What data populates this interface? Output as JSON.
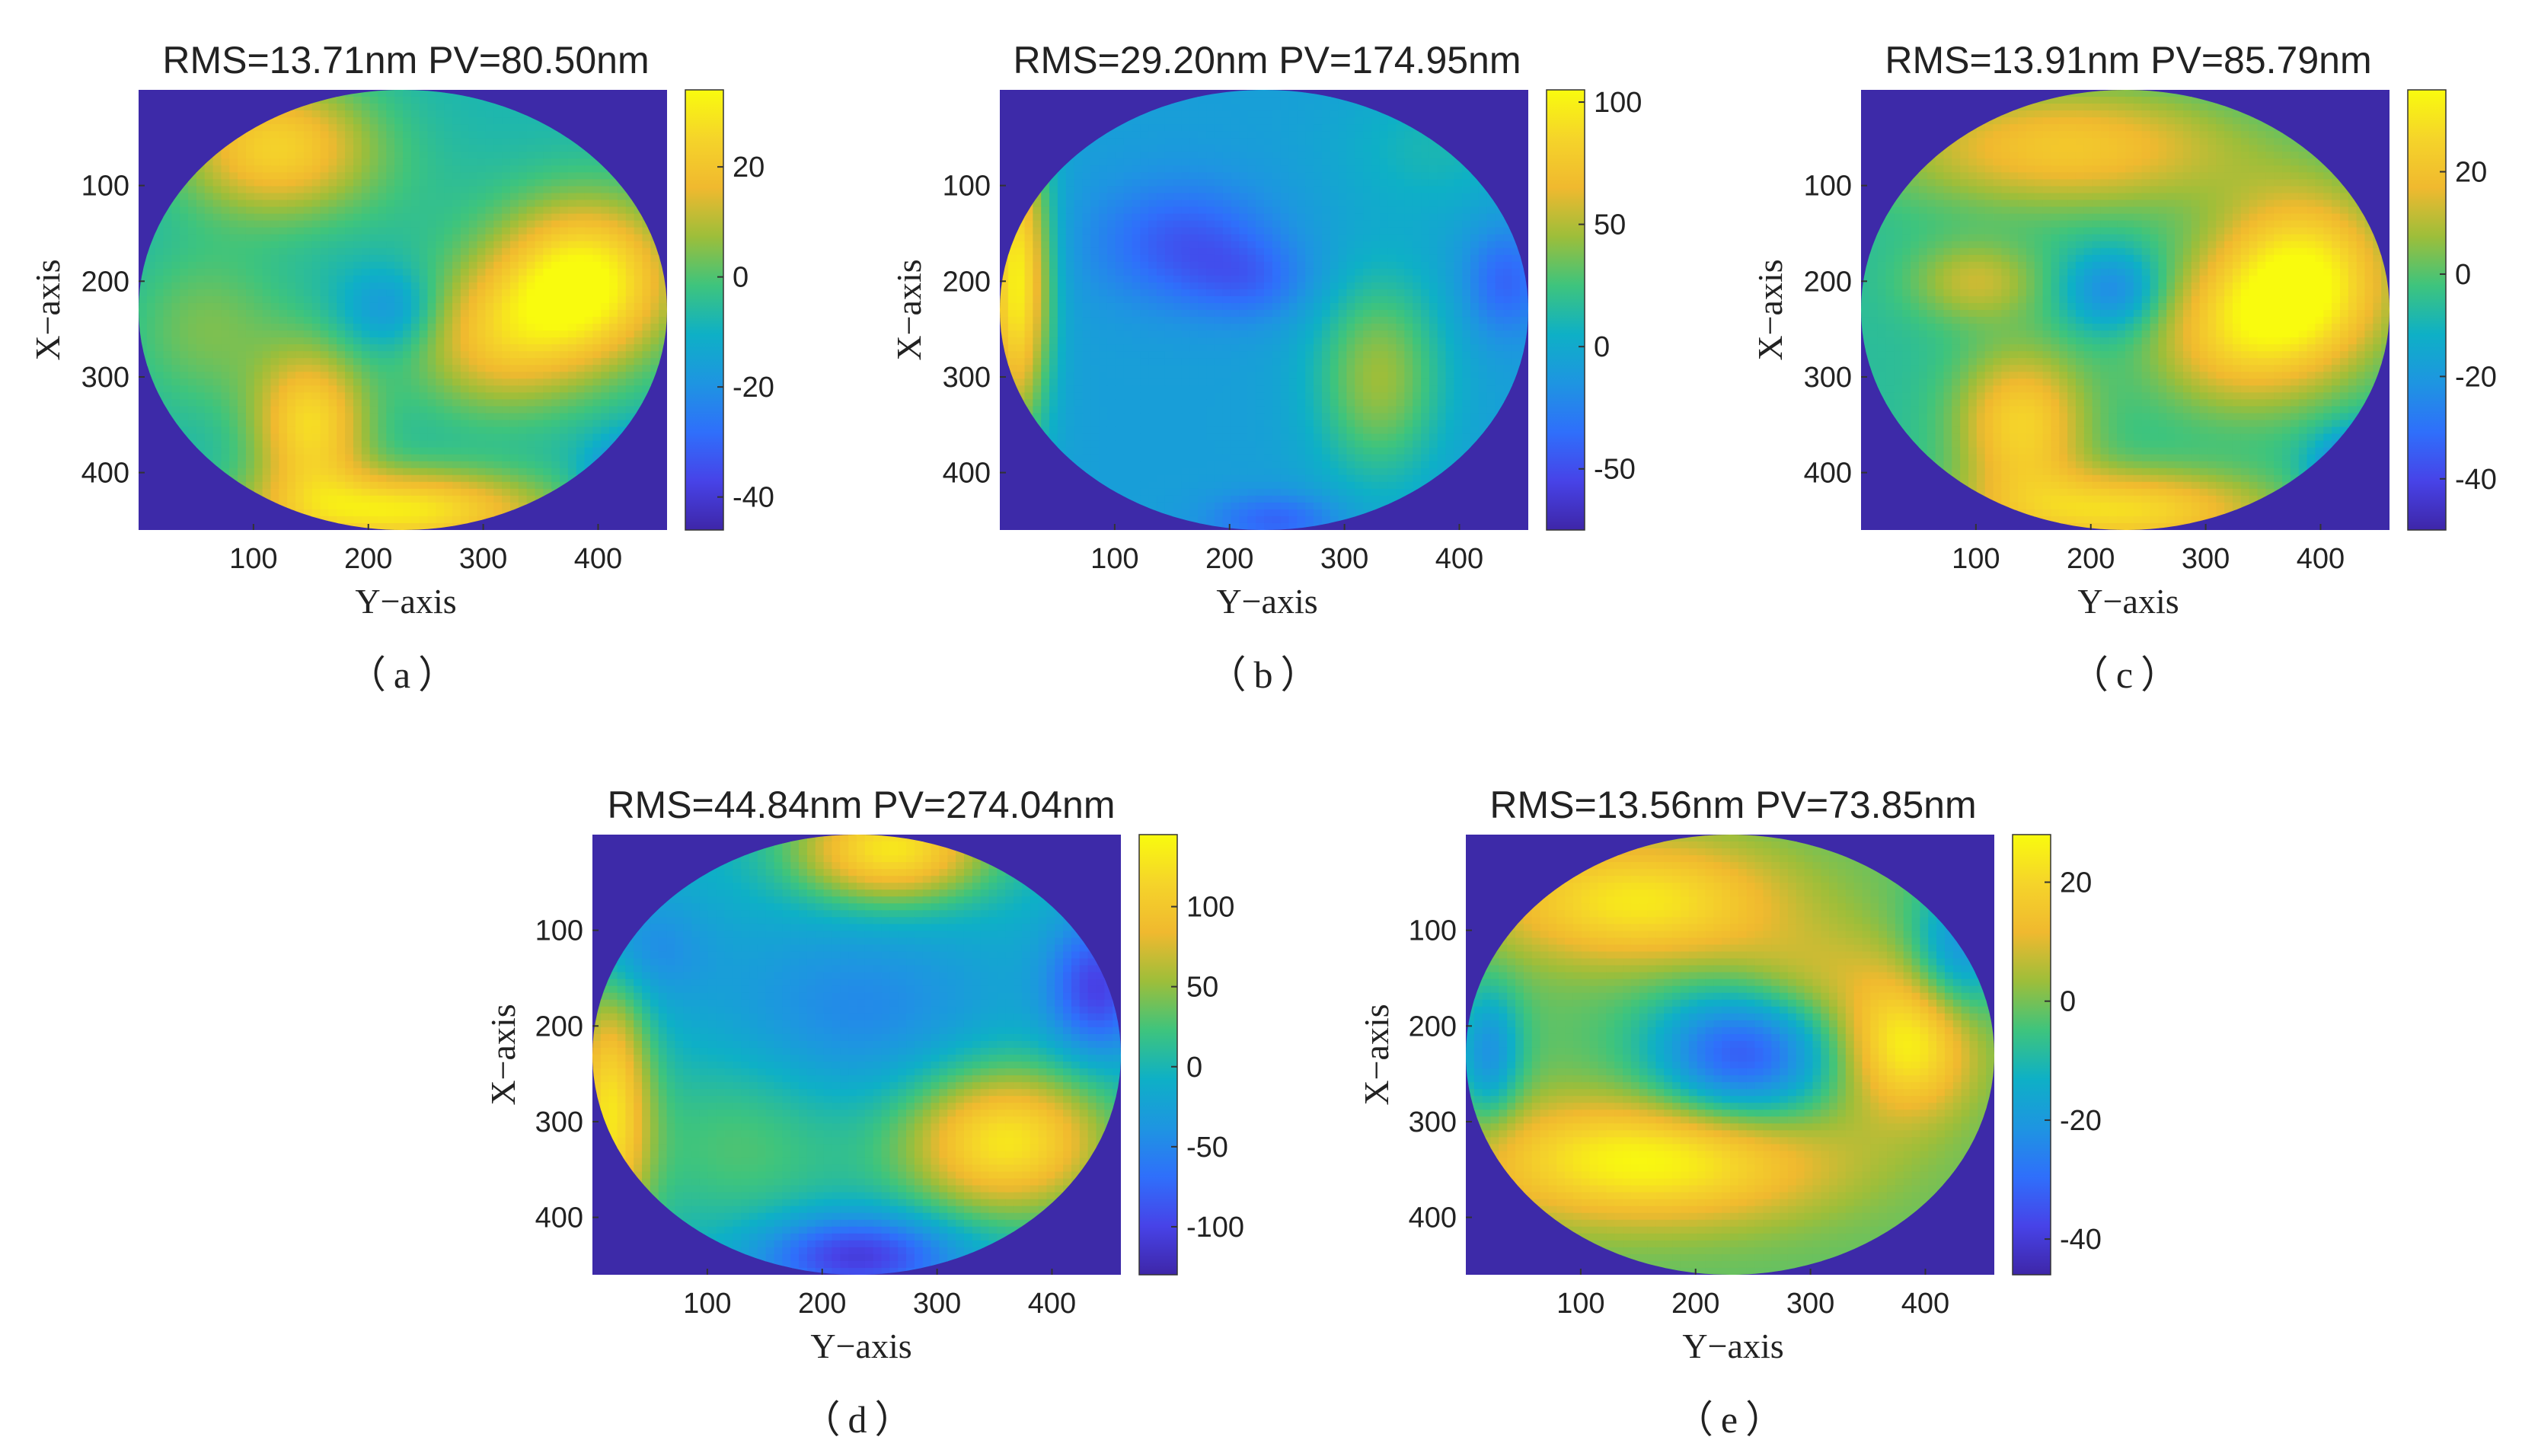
{
  "colors": {
    "background_fill": "#3d2aa8",
    "colormap": [
      "#3e26a8",
      "#4743e8",
      "#2f6ffb",
      "#1e95e1",
      "#0eb0c6",
      "#3ec47d",
      "#9dbe3a",
      "#f0b92f",
      "#f5d42a",
      "#f9fb0e"
    ]
  },
  "chart_data": [
    {
      "panel": "a",
      "type": "heatmap",
      "subplot_label": "（a）",
      "title": "RMS=13.71nm PV=80.50nm",
      "xlabel": "Y−axis",
      "ylabel": "X−axis",
      "xlim": [
        0,
        460
      ],
      "ylim": [
        0,
        460
      ],
      "xticks": [
        100,
        200,
        300,
        400
      ],
      "yticks": [
        100,
        200,
        300,
        400
      ],
      "colorbar": {
        "range": [
          -46,
          34
        ],
        "ticks": [
          20,
          0,
          -20,
          -40
        ]
      },
      "base_value": -8,
      "blobs": [
        {
          "x": 390,
          "y": 200,
          "value": 34,
          "sx": 55,
          "sy": 60
        },
        {
          "x": 310,
          "y": 260,
          "value": 16,
          "sx": 55,
          "sy": 55
        },
        {
          "x": 120,
          "y": 60,
          "value": 24,
          "sx": 60,
          "sy": 50
        },
        {
          "x": 150,
          "y": 350,
          "value": 26,
          "sx": 35,
          "sy": 55
        },
        {
          "x": 230,
          "y": 440,
          "value": 30,
          "sx": 90,
          "sy": 30
        },
        {
          "x": 220,
          "y": 230,
          "value": -22,
          "sx": 30,
          "sy": 30
        },
        {
          "x": 440,
          "y": 410,
          "value": -40,
          "sx": 30,
          "sy": 30
        },
        {
          "x": 240,
          "y": 110,
          "value": -6,
          "sx": 60,
          "sy": 50
        },
        {
          "x": 60,
          "y": 250,
          "value": 4,
          "sx": 50,
          "sy": 60
        }
      ]
    },
    {
      "panel": "b",
      "type": "heatmap",
      "subplot_label": "（b）",
      "title": "RMS=29.20nm PV=174.95nm",
      "xlabel": "Y−axis",
      "ylabel": "X−axis",
      "xlim": [
        0,
        460
      ],
      "ylim": [
        0,
        460
      ],
      "xticks": [
        100,
        200,
        300,
        400
      ],
      "yticks": [
        100,
        200,
        300,
        400
      ],
      "colorbar": {
        "range": [
          -75,
          105
        ],
        "ticks": [
          100,
          50,
          0,
          -50
        ]
      },
      "base_value": -8,
      "blobs": [
        {
          "x": 15,
          "y": 200,
          "value": 100,
          "sx": 20,
          "sy": 110
        },
        {
          "x": 330,
          "y": 300,
          "value": 45,
          "sx": 40,
          "sy": 75
        },
        {
          "x": 160,
          "y": 160,
          "value": -45,
          "sx": 55,
          "sy": 45
        },
        {
          "x": 220,
          "y": 200,
          "value": -30,
          "sx": 40,
          "sy": 30
        },
        {
          "x": 440,
          "y": 200,
          "value": -40,
          "sx": 25,
          "sy": 40
        },
        {
          "x": 240,
          "y": 450,
          "value": -40,
          "sx": 40,
          "sy": 20
        },
        {
          "x": 380,
          "y": 60,
          "value": 10,
          "sx": 60,
          "sy": 50
        }
      ]
    },
    {
      "panel": "c",
      "type": "heatmap",
      "subplot_label": "（c）",
      "title": "RMS=13.91nm PV=85.79nm",
      "xlabel": "Y−axis",
      "ylabel": "X−axis",
      "xlim": [
        0,
        460
      ],
      "ylim": [
        0,
        460
      ],
      "xticks": [
        100,
        200,
        300,
        400
      ],
      "yticks": [
        100,
        200,
        300,
        400
      ],
      "colorbar": {
        "range": [
          -50,
          36
        ],
        "ticks": [
          20,
          0,
          -20,
          -40
        ]
      },
      "base_value": -6,
      "blobs": [
        {
          "x": 385,
          "y": 200,
          "value": 36,
          "sx": 55,
          "sy": 65
        },
        {
          "x": 320,
          "y": 260,
          "value": 16,
          "sx": 55,
          "sy": 55
        },
        {
          "x": 180,
          "y": 60,
          "value": 22,
          "sx": 110,
          "sy": 45
        },
        {
          "x": 140,
          "y": 350,
          "value": 26,
          "sx": 40,
          "sy": 55
        },
        {
          "x": 230,
          "y": 440,
          "value": 28,
          "sx": 90,
          "sy": 30
        },
        {
          "x": 220,
          "y": 210,
          "value": -26,
          "sx": 30,
          "sy": 30
        },
        {
          "x": 440,
          "y": 400,
          "value": -42,
          "sx": 30,
          "sy": 30
        },
        {
          "x": 100,
          "y": 200,
          "value": 12,
          "sx": 40,
          "sy": 30
        }
      ]
    },
    {
      "panel": "d",
      "type": "heatmap",
      "subplot_label": "（d）",
      "title": "RMS=44.84nm PV=274.04nm",
      "xlabel": "Y−axis",
      "ylabel": "X−axis",
      "xlim": [
        0,
        460
      ],
      "ylim": [
        0,
        460
      ],
      "xticks": [
        100,
        200,
        300,
        400
      ],
      "yticks": [
        100,
        200,
        300,
        400
      ],
      "colorbar": {
        "range": [
          -130,
          145
        ],
        "ticks": [
          100,
          50,
          0,
          -50,
          -100
        ]
      },
      "base_value": -10,
      "blobs": [
        {
          "x": 260,
          "y": 15,
          "value": 130,
          "sx": 60,
          "sy": 40
        },
        {
          "x": 360,
          "y": 320,
          "value": 130,
          "sx": 65,
          "sy": 55
        },
        {
          "x": 15,
          "y": 290,
          "value": 120,
          "sx": 25,
          "sy": 100
        },
        {
          "x": 230,
          "y": 440,
          "value": -110,
          "sx": 60,
          "sy": 30
        },
        {
          "x": 230,
          "y": 190,
          "value": -50,
          "sx": 90,
          "sy": 70
        },
        {
          "x": 440,
          "y": 160,
          "value": -100,
          "sx": 30,
          "sy": 50
        },
        {
          "x": 40,
          "y": 120,
          "value": -50,
          "sx": 40,
          "sy": 40
        },
        {
          "x": 130,
          "y": 320,
          "value": 30,
          "sx": 70,
          "sy": 70
        }
      ]
    },
    {
      "panel": "e",
      "type": "heatmap",
      "subplot_label": "（e）",
      "title": "RMS=13.56nm PV=73.85nm",
      "xlabel": "Y−axis",
      "ylabel": "X−axis",
      "xlim": [
        0,
        460
      ],
      "ylim": [
        0,
        460
      ],
      "xticks": [
        100,
        200,
        300,
        400
      ],
      "yticks": [
        100,
        200,
        300,
        400
      ],
      "colorbar": {
        "range": [
          -46,
          28
        ],
        "ticks": [
          20,
          0,
          -20,
          -40
        ]
      },
      "base_value": -2,
      "blobs": [
        {
          "x": 150,
          "y": 70,
          "value": 24,
          "sx": 90,
          "sy": 45
        },
        {
          "x": 160,
          "y": 340,
          "value": 28,
          "sx": 110,
          "sy": 45
        },
        {
          "x": 385,
          "y": 220,
          "value": 26,
          "sx": 40,
          "sy": 50
        },
        {
          "x": 240,
          "y": 230,
          "value": -34,
          "sx": 55,
          "sy": 50
        },
        {
          "x": 20,
          "y": 230,
          "value": -22,
          "sx": 20,
          "sy": 50
        },
        {
          "x": 430,
          "y": 120,
          "value": -22,
          "sx": 30,
          "sy": 50
        },
        {
          "x": 300,
          "y": 150,
          "value": 8,
          "sx": 60,
          "sy": 40
        }
      ]
    }
  ]
}
